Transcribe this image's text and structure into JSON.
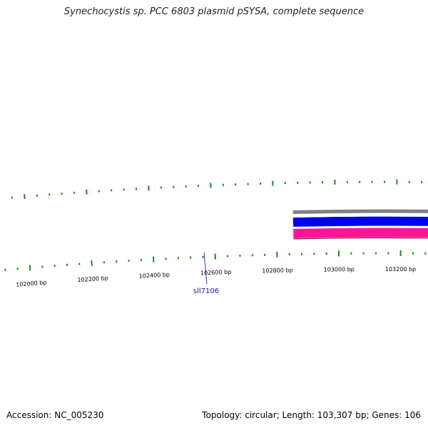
{
  "title": "Synechocystis sp. PCC 6803 plasmid pSYSA, complete sequence",
  "footer": {
    "accession": "Accession: NC_005230",
    "summary": "Topology: circular; Length: 103,307 bp; Genes: 106"
  },
  "scale_labels": [
    "102000 bp",
    "102200 bp",
    "102400 bp",
    "102600 bp",
    "102800 bp",
    "103000 bp",
    "103200 bp"
  ],
  "gene_labels": [
    "sll7106"
  ],
  "colors": {
    "gc_ticks": "#1a8a1a",
    "scale_ticks": "#1a8a1a",
    "outer_ring": "#808080",
    "forward_strand": "#0000ee",
    "reverse_strand": "#ff1493",
    "label_line": "#3030c0",
    "background": "#ffffff"
  }
}
